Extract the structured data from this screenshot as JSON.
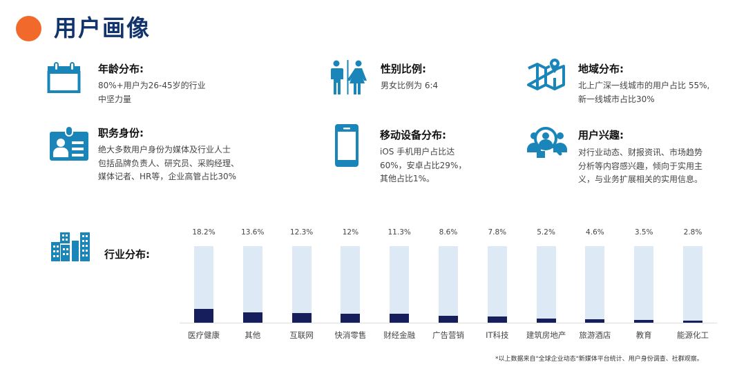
{
  "header": {
    "title": "用户画像",
    "accent_color": "#f26a2b",
    "title_color": "#12336b"
  },
  "icon_color": "#1a85b8",
  "features": [
    {
      "icon": "calendar-icon",
      "title": "年龄分布:",
      "desc": "80%+用户为26-45岁的行业\n中坚力量"
    },
    {
      "icon": "gender-icon",
      "title": "性别比例:",
      "desc": "男女比例为 6:4"
    },
    {
      "icon": "map-pin-icon",
      "title": "地域分布:",
      "desc": "北上广深一线城市的用户占比 55%,\n新一线城市占比30%"
    },
    {
      "icon": "id-badge-icon",
      "title": "职务身份:",
      "desc": "绝大多数用户身份为媒体及行业人士\n包括品牌负责人、研究员、采购经理、\n媒体记者、HR等，企业高管占比30%"
    },
    {
      "icon": "mobile-phone-icon",
      "title": "移动设备分布:",
      "desc": "iOS 手机用户占比达\n60%，安卓占比29%，\n其他占比1%。"
    },
    {
      "icon": "user-search-icon",
      "title": "用户兴趣:",
      "desc": "对行业动态、财报资讯、市场趋势\n分析等内容感兴趣，倾向于实用主\n义，与业务扩展相关的实用信息。"
    }
  ],
  "industry": {
    "icon": "buildings-icon",
    "title": "行业分布:"
  },
  "chart_data": {
    "type": "bar",
    "title": "行业分布",
    "categories": [
      "医疗健康",
      "其他",
      "互联网",
      "快消零售",
      "财经金融",
      "广告营销",
      "IT科技",
      "建筑房地产",
      "旅游酒店",
      "教育",
      "能源化工"
    ],
    "values": [
      18.2,
      13.6,
      12.3,
      12,
      11.3,
      8.6,
      7.8,
      5.2,
      4.6,
      3.5,
      2.8
    ],
    "value_labels": [
      "18.2%",
      "13.6%",
      "12.3%",
      "12%",
      "11.3%",
      "8.6%",
      "7.8%",
      "5.2%",
      "4.6%",
      "3.5%",
      "2.8%"
    ],
    "unit": "%",
    "xlabel": "",
    "ylabel": "",
    "ylim": [
      0,
      100
    ],
    "grid": false,
    "legend": "none",
    "colors": {
      "fill": "#161f5b",
      "track": "#dde9f5"
    }
  },
  "footnote": "*以上数据来自\"全球企业动态\"新媒体平台统计、用户身份调查、社群观察。"
}
